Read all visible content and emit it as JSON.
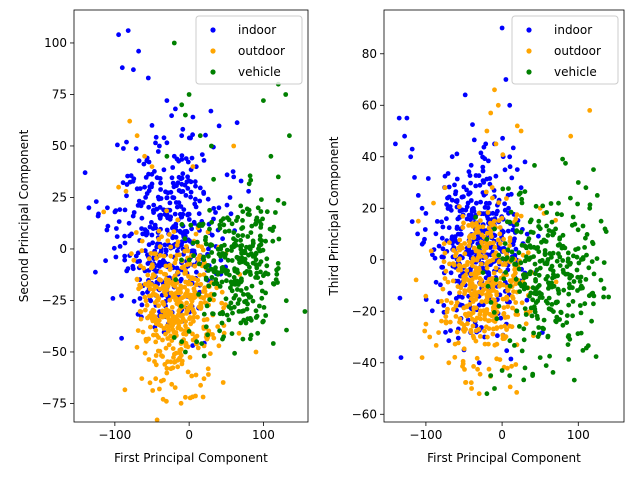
{
  "chart_data": [
    {
      "type": "scatter",
      "xlabel": "First Principal Component",
      "ylabel": "Second Principal Component",
      "xlim": [
        -155,
        160
      ],
      "ylim": [
        -84,
        116
      ],
      "xticks": [
        -100,
        0,
        100
      ],
      "yticks": [
        -75,
        -50,
        -25,
        0,
        25,
        50,
        75,
        100
      ],
      "legend": "top-right",
      "series": [
        {
          "name": "indoor",
          "color": "#0000ff",
          "cluster": {
            "cx": -30,
            "cy": 8,
            "sx": 35,
            "sy": 22,
            "n": 420
          },
          "points": [
            [
              -95,
              104
            ],
            [
              -82,
              106
            ],
            [
              -90,
              88
            ],
            [
              -68,
              96
            ],
            [
              -75,
              87
            ],
            [
              -55,
              83
            ],
            [
              -30,
              72
            ],
            [
              -140,
              37
            ],
            [
              -135,
              20
            ],
            [
              -122,
              17
            ],
            [
              -125,
              23
            ],
            [
              -110,
              20
            ],
            [
              -100,
              18
            ],
            [
              -60,
              30
            ],
            [
              -10,
              55
            ],
            [
              5,
              64
            ],
            [
              20,
              43
            ],
            [
              70,
              33
            ],
            [
              55,
              25
            ],
            [
              60,
              35
            ],
            [
              40,
              20
            ],
            [
              45,
              5
            ],
            [
              80,
              28
            ],
            [
              -50,
              60
            ],
            [
              -40,
              50
            ],
            [
              -20,
              45
            ]
          ]
        },
        {
          "name": "outdoor",
          "color": "#ffa500",
          "cluster": {
            "cx": -15,
            "cy": -28,
            "sx": 28,
            "sy": 18,
            "n": 420
          },
          "points": [
            [
              -45,
              -63
            ],
            [
              -40,
              -68
            ],
            [
              -35,
              -73
            ],
            [
              -5,
              -72
            ],
            [
              -30,
              -58
            ],
            [
              20,
              -63
            ],
            [
              -15,
              -54
            ],
            [
              25,
              -43
            ],
            [
              40,
              -47
            ],
            [
              90,
              -50
            ],
            [
              -80,
              62
            ],
            [
              -70,
              55
            ],
            [
              -95,
              30
            ],
            [
              -115,
              18
            ],
            [
              -85,
              28
            ],
            [
              -60,
              45
            ],
            [
              -50,
              40
            ],
            [
              5,
              40
            ],
            [
              60,
              50
            ],
            [
              -20,
              -55
            ]
          ]
        },
        {
          "name": "vehicle",
          "color": "#008000",
          "cluster": {
            "cx": 65,
            "cy": -8,
            "sx": 30,
            "sy": 18,
            "n": 300
          },
          "points": [
            [
              -20,
              100
            ],
            [
              -10,
              70
            ],
            [
              0,
              75
            ],
            [
              -5,
              65
            ],
            [
              -30,
              45
            ],
            [
              15,
              55
            ],
            [
              30,
              50
            ],
            [
              100,
              72
            ],
            [
              120,
              80
            ],
            [
              130,
              75
            ],
            [
              135,
              55
            ],
            [
              110,
              45
            ],
            [
              120,
              35
            ],
            [
              100,
              -35
            ],
            [
              90,
              -30
            ],
            [
              -10,
              -45
            ],
            [
              -5,
              -50
            ],
            [
              -20,
              -43
            ],
            [
              0,
              -40
            ],
            [
              10,
              -45
            ]
          ]
        }
      ]
    },
    {
      "type": "scatter",
      "xlabel": "First Principal Component",
      "ylabel": "Third Principal Component",
      "xlim": [
        -155,
        160
      ],
      "ylim": [
        -63,
        97
      ],
      "xticks": [
        -100,
        0,
        100
      ],
      "yticks": [
        -60,
        -40,
        -20,
        0,
        20,
        40,
        60,
        80
      ],
      "legend": "top-right",
      "series": [
        {
          "name": "indoor",
          "color": "#0000ff",
          "cluster": {
            "cx": -35,
            "cy": 5,
            "sx": 30,
            "sy": 16,
            "n": 420
          },
          "points": [
            [
              -135,
              55
            ],
            [
              -125,
              55
            ],
            [
              -140,
              45
            ],
            [
              -128,
              48
            ],
            [
              -120,
              40
            ],
            [
              -115,
              32
            ],
            [
              -118,
              43
            ],
            [
              -110,
              25
            ],
            [
              -105,
              20
            ],
            [
              -100,
              18
            ],
            [
              0,
              90
            ],
            [
              5,
              70
            ],
            [
              10,
              60
            ],
            [
              -10,
              45
            ],
            [
              10,
              40
            ],
            [
              20,
              35
            ],
            [
              30,
              38
            ],
            [
              25,
              28
            ],
            [
              -30,
              -40
            ],
            [
              -50,
              -35
            ]
          ]
        },
        {
          "name": "outdoor",
          "color": "#ffa500",
          "cluster": {
            "cx": -25,
            "cy": -10,
            "sx": 28,
            "sy": 15,
            "n": 420
          },
          "points": [
            [
              -10,
              66
            ],
            [
              -5,
              60
            ],
            [
              -15,
              57
            ],
            [
              -20,
              50
            ],
            [
              -8,
              45
            ],
            [
              20,
              52
            ],
            [
              25,
              50
            ],
            [
              90,
              48
            ],
            [
              115,
              58
            ],
            [
              -100,
              -25
            ],
            [
              -95,
              -30
            ],
            [
              -105,
              -38
            ],
            [
              -70,
              -40
            ],
            [
              -40,
              -50
            ],
            [
              -30,
              -52
            ],
            [
              50,
              20
            ],
            [
              55,
              18
            ],
            [
              -110,
              15
            ],
            [
              -90,
              22
            ],
            [
              -75,
              28
            ]
          ]
        },
        {
          "name": "vehicle",
          "color": "#008000",
          "cluster": {
            "cx": 60,
            "cy": -5,
            "sx": 35,
            "sy": 16,
            "n": 300
          },
          "points": [
            [
              100,
              30
            ],
            [
              110,
              28
            ],
            [
              120,
              35
            ],
            [
              125,
              25
            ],
            [
              130,
              15
            ],
            [
              135,
              12
            ],
            [
              115,
              20
            ],
            [
              -15,
              -45
            ],
            [
              -10,
              -50
            ],
            [
              -20,
              -52
            ],
            [
              0,
              -43
            ],
            [
              10,
              -45
            ],
            [
              30,
              -42
            ],
            [
              40,
              -45
            ],
            [
              50,
              -38
            ],
            [
              -20,
              8
            ],
            [
              -30,
              5
            ],
            [
              -25,
              -5
            ],
            [
              -10,
              12
            ],
            [
              60,
              -30
            ]
          ]
        }
      ]
    }
  ]
}
